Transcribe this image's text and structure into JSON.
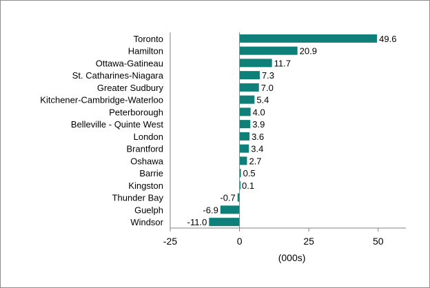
{
  "chart_data": {
    "type": "bar",
    "orientation": "horizontal",
    "categories": [
      "Toronto",
      "Hamilton",
      "Ottawa-Gatineau",
      "St. Catharines-Niagara",
      "Greater Sudbury",
      "Kitchener-Cambridge-Waterloo",
      "Peterborough",
      "Belleville - Quinte West",
      "London",
      "Brantford",
      "Oshawa",
      "Barrie",
      "Kingston",
      "Thunder Bay",
      "Guelph",
      "Windsor"
    ],
    "values": [
      49.6,
      20.9,
      11.7,
      7.3,
      7.0,
      5.4,
      4.0,
      3.9,
      3.6,
      3.4,
      2.7,
      0.5,
      0.1,
      -0.7,
      -6.9,
      -11.0
    ],
    "value_labels": [
      "49.6",
      "20.9",
      "11.7",
      "7.3",
      "7.0",
      "5.4",
      "4.0",
      "3.9",
      "3.6",
      "3.4",
      "2.7",
      "0.5",
      "0.1",
      "-0.7",
      "-6.9",
      "-11.0"
    ],
    "xlabel": "(000s)",
    "xlim": [
      -25,
      60
    ],
    "xticks": [
      -25,
      0,
      25,
      50
    ],
    "xtick_labels": [
      "-25",
      "0",
      "25",
      "50"
    ],
    "grid": false,
    "legend": false,
    "colors": {
      "bar": "#0f7f7a",
      "axis": "#808080",
      "frame": "#8c8c8c"
    }
  }
}
